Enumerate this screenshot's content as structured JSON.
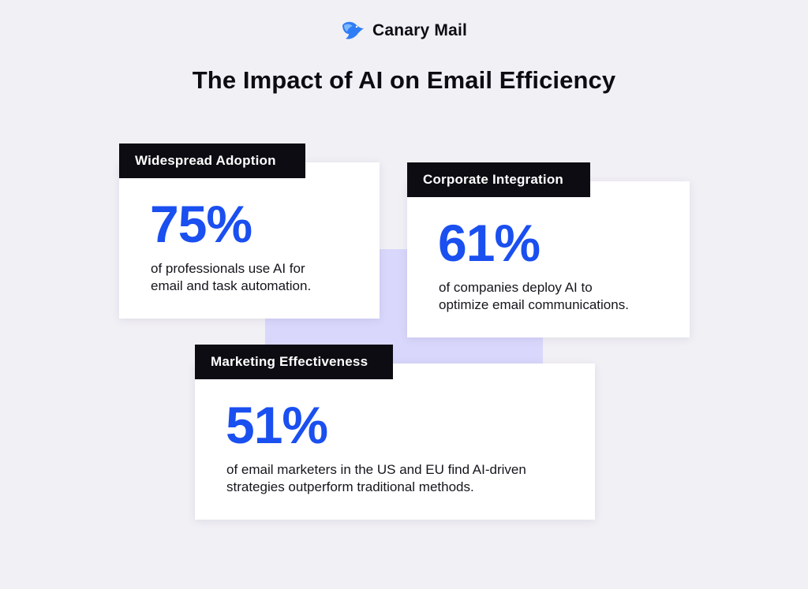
{
  "brand": {
    "name": "Canary Mail",
    "logo_icon": "canary-bird-logo-icon",
    "logo_color": "#2f7df6"
  },
  "title": "The Impact of AI on Email Efficiency",
  "colors": {
    "background": "#f1f0f5",
    "accent_block": "#d9d7fb",
    "tag_background": "#0c0c12",
    "stat": "#1a4ff0"
  },
  "cards": [
    {
      "tag": "Widespread Adoption",
      "stat": "75%",
      "desc_lines": [
        "of professionals use AI for",
        "email and task automation."
      ]
    },
    {
      "tag": "Corporate Integration",
      "stat": "61%",
      "desc_lines": [
        "of companies deploy AI to",
        "optimize email communications."
      ]
    },
    {
      "tag": "Marketing Effectiveness",
      "stat": "51%",
      "desc_lines": [
        "of email marketers in the US and EU find AI-driven",
        "strategies outperform traditional methods."
      ]
    }
  ]
}
